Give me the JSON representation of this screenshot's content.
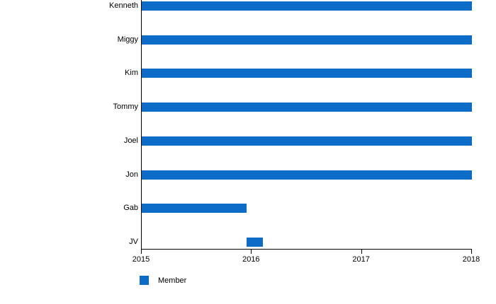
{
  "colors": {
    "bar": "#0D6CC8",
    "axis": "#000000",
    "text": "#000000",
    "background": "#FFFFFF"
  },
  "chart_data": {
    "type": "bar",
    "orientation": "horizontal",
    "title": "",
    "xlabel": "",
    "ylabel": "",
    "grid": false,
    "categories": [
      "Kenneth",
      "Miggy",
      "Kim",
      "Tommy",
      "Joel",
      "Jon",
      "Gab",
      "JV"
    ],
    "series": [
      {
        "name": "Member",
        "color": "#0D6CC8",
        "ranges": [
          [
            2015.0,
            2018.0
          ],
          [
            2015.0,
            2018.0
          ],
          [
            2015.0,
            2018.0
          ],
          [
            2015.0,
            2018.0
          ],
          [
            2015.0,
            2018.0
          ],
          [
            2015.0,
            2018.0
          ],
          [
            2015.0,
            2015.95
          ],
          [
            2015.95,
            2016.1
          ]
        ]
      }
    ],
    "xlim": [
      2015,
      2018
    ],
    "x_ticks": [
      "2015",
      "2016",
      "2017",
      "2018"
    ],
    "legend": {
      "position": "bottom-left",
      "entries": [
        {
          "label": "Member",
          "color": "#0D6CC8"
        }
      ]
    }
  }
}
